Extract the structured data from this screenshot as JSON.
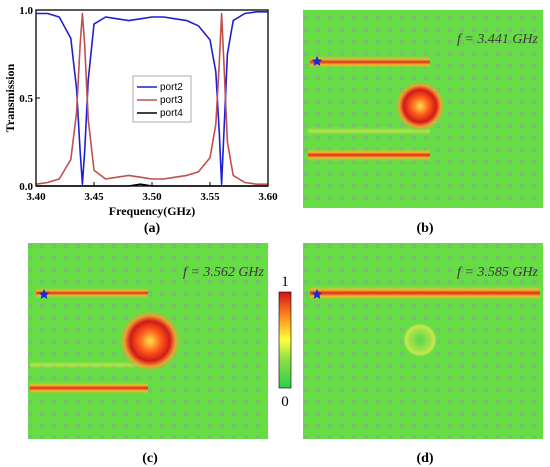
{
  "chart_data": {
    "type": "line",
    "title": "",
    "xlabel": "Frequency(GHz)",
    "ylabel": "Transmission",
    "xlim": [
      3.4,
      3.6
    ],
    "ylim": [
      0,
      1.0
    ],
    "x_ticks": [
      "3.40",
      "3.45",
      "3.50",
      "3.55",
      "3.60"
    ],
    "y_ticks": [
      "0.0",
      "0.5",
      "1.0"
    ],
    "legend_position": "center",
    "series": [
      {
        "name": "port2",
        "color": "#1f1fd0",
        "x": [
          3.4,
          3.41,
          3.42,
          3.43,
          3.435,
          3.438,
          3.44,
          3.442,
          3.445,
          3.45,
          3.46,
          3.47,
          3.48,
          3.49,
          3.5,
          3.51,
          3.52,
          3.53,
          3.54,
          3.55,
          3.555,
          3.558,
          3.56,
          3.562,
          3.565,
          3.57,
          3.58,
          3.59,
          3.6
        ],
        "y": [
          0.98,
          0.98,
          0.96,
          0.84,
          0.55,
          0.2,
          0.01,
          0.2,
          0.6,
          0.92,
          0.96,
          0.95,
          0.94,
          0.95,
          0.96,
          0.96,
          0.95,
          0.94,
          0.91,
          0.83,
          0.65,
          0.3,
          0.01,
          0.3,
          0.75,
          0.94,
          0.98,
          0.99,
          0.99
        ]
      },
      {
        "name": "port3",
        "color": "#c0504d",
        "x": [
          3.4,
          3.41,
          3.42,
          3.43,
          3.435,
          3.438,
          3.44,
          3.442,
          3.445,
          3.45,
          3.46,
          3.47,
          3.48,
          3.49,
          3.5,
          3.51,
          3.52,
          3.53,
          3.54,
          3.55,
          3.555,
          3.558,
          3.56,
          3.562,
          3.565,
          3.57,
          3.58,
          3.59,
          3.6
        ],
        "y": [
          0.01,
          0.02,
          0.04,
          0.15,
          0.42,
          0.8,
          0.98,
          0.8,
          0.38,
          0.09,
          0.04,
          0.05,
          0.06,
          0.05,
          0.04,
          0.04,
          0.05,
          0.06,
          0.08,
          0.16,
          0.35,
          0.7,
          0.98,
          0.7,
          0.25,
          0.06,
          0.02,
          0.01,
          0.01
        ]
      },
      {
        "name": "port4",
        "color": "#000000",
        "x": [
          3.4,
          3.45,
          3.48,
          3.49,
          3.5,
          3.55,
          3.6
        ],
        "y": [
          0.0,
          0.0,
          0.0,
          0.01,
          0.0,
          0.0,
          0.0
        ]
      }
    ]
  },
  "panels": [
    {
      "label": "(a)"
    },
    {
      "label": "(b)",
      "freq": "f = 3.441 GHz"
    },
    {
      "label": "(c)",
      "freq": "f = 3.562 GHz"
    },
    {
      "label": "(d)",
      "freq": "f = 3.585 GHz"
    }
  ],
  "colorbar": {
    "max_label": "1",
    "min_label": "0"
  }
}
